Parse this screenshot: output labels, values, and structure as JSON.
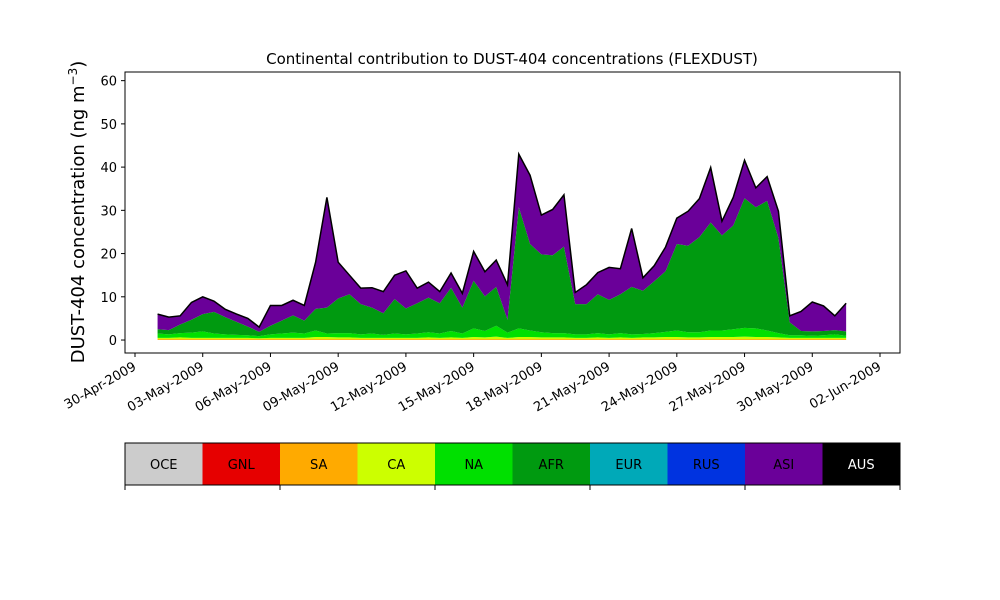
{
  "chart_data": {
    "type": "area",
    "title": "Continental contribution to DUST-404 concentrations (FLEXDUST)",
    "ylabel": "DUST-404 concentration (ng m",
    "ylabel_exp": "−3",
    "ylabel_close": ")",
    "xlabel": "",
    "ylim": [
      -3,
      62
    ],
    "yticks": [
      0,
      10,
      20,
      30,
      40,
      50,
      60
    ],
    "xlim": [
      "2009-04-30T00:00",
      "2009-06-02T00:00"
    ],
    "xticks": [
      "2009-04-30",
      "2009-05-03",
      "2009-05-06",
      "2009-05-09",
      "2009-05-12",
      "2009-05-15",
      "2009-05-18",
      "2009-05-21",
      "2009-05-24",
      "2009-05-27",
      "2009-05-30",
      "2009-06-02"
    ],
    "xtick_labels": [
      "30-Apr-2009",
      "03-May-2009",
      "06-May-2009",
      "09-May-2009",
      "12-May-2009",
      "15-May-2009",
      "18-May-2009",
      "21-May-2009",
      "24-May-2009",
      "27-May-2009",
      "30-May-2009",
      "02-Jun-2009"
    ],
    "grid": false,
    "legend": "colorbar below plot",
    "stacking_order": [
      "OCE",
      "GNL",
      "SA",
      "CA",
      "NA",
      "AFR",
      "EUR",
      "RUS",
      "ASI",
      "AUS"
    ],
    "total_line_color": "#000000",
    "x": [
      "2009-05-01T00:00",
      "2009-05-01T12:00",
      "2009-05-02T00:00",
      "2009-05-02T12:00",
      "2009-05-03T00:00",
      "2009-05-03T12:00",
      "2009-05-04T00:00",
      "2009-05-04T12:00",
      "2009-05-05T00:00",
      "2009-05-05T12:00",
      "2009-05-06T00:00",
      "2009-05-06T12:00",
      "2009-05-07T00:00",
      "2009-05-07T12:00",
      "2009-05-08T00:00",
      "2009-05-08T12:00",
      "2009-05-09T00:00",
      "2009-05-09T12:00",
      "2009-05-10T00:00",
      "2009-05-10T12:00",
      "2009-05-11T00:00",
      "2009-05-11T12:00",
      "2009-05-12T00:00",
      "2009-05-12T12:00",
      "2009-05-13T00:00",
      "2009-05-13T12:00",
      "2009-05-14T00:00",
      "2009-05-14T12:00",
      "2009-05-15T00:00",
      "2009-05-15T12:00",
      "2009-05-16T00:00",
      "2009-05-16T12:00",
      "2009-05-17T00:00",
      "2009-05-17T12:00",
      "2009-05-18T00:00",
      "2009-05-18T12:00",
      "2009-05-19T00:00",
      "2009-05-19T12:00",
      "2009-05-20T00:00",
      "2009-05-20T12:00",
      "2009-05-21T00:00",
      "2009-05-21T12:00",
      "2009-05-22T00:00",
      "2009-05-22T12:00",
      "2009-05-23T00:00",
      "2009-05-23T12:00",
      "2009-05-24T00:00",
      "2009-05-24T12:00",
      "2009-05-25T00:00",
      "2009-05-25T12:00",
      "2009-05-26T00:00",
      "2009-05-26T12:00",
      "2009-05-27T00:00",
      "2009-05-27T12:00",
      "2009-05-28T00:00",
      "2009-05-28T12:00",
      "2009-05-29T00:00",
      "2009-05-29T12:00",
      "2009-05-30T00:00",
      "2009-05-30T12:00",
      "2009-05-31T00:00",
      "2009-05-31T12:00"
    ],
    "series": [
      {
        "name": "OCE",
        "color": "#cccccc",
        "values": [
          0,
          0,
          0,
          0,
          0,
          0,
          0,
          0,
          0,
          0,
          0,
          0,
          0,
          0,
          0,
          0,
          0,
          0,
          0,
          0,
          0,
          0,
          0,
          0,
          0,
          0,
          0,
          0,
          0,
          0,
          0,
          0,
          0,
          0,
          0,
          0,
          0,
          0,
          0,
          0,
          0,
          0,
          0,
          0,
          0,
          0,
          0,
          0,
          0,
          0,
          0,
          0,
          0,
          0,
          0,
          0,
          0,
          0,
          0,
          0,
          0,
          0
        ]
      },
      {
        "name": "GNL",
        "color": "#e60000",
        "values": [
          0,
          0,
          0,
          0,
          0,
          0,
          0,
          0,
          0,
          0,
          0,
          0,
          0,
          0,
          0,
          0,
          0,
          0,
          0,
          0,
          0,
          0,
          0,
          0,
          0,
          0,
          0,
          0,
          0,
          0,
          0,
          0,
          0,
          0,
          0,
          0,
          0,
          0,
          0,
          0,
          0,
          0,
          0,
          0,
          0,
          0,
          0,
          0,
          0,
          0,
          0,
          0,
          0,
          0,
          0,
          0,
          0,
          0,
          0,
          0,
          0,
          0
        ]
      },
      {
        "name": "SA",
        "color": "#ffaa00",
        "values": [
          0.2,
          0.2,
          0.2,
          0.2,
          0.2,
          0.2,
          0.2,
          0.2,
          0.2,
          0.2,
          0.2,
          0.2,
          0.2,
          0.2,
          0.2,
          0.2,
          0.2,
          0.2,
          0.2,
          0.2,
          0.2,
          0.2,
          0.2,
          0.2,
          0.2,
          0.2,
          0.2,
          0.2,
          0.2,
          0.2,
          0.2,
          0.2,
          0.2,
          0.2,
          0.2,
          0.2,
          0.2,
          0.2,
          0.2,
          0.2,
          0.2,
          0.2,
          0.2,
          0.2,
          0.2,
          0.2,
          0.2,
          0.2,
          0.2,
          0.2,
          0.2,
          0.2,
          0.2,
          0.2,
          0.2,
          0.2,
          0.2,
          0.2,
          0.2,
          0.2,
          0.2,
          0.2
        ]
      },
      {
        "name": "CA",
        "color": "#ccff00",
        "values": [
          0.3,
          0.3,
          0.4,
          0.3,
          0.3,
          0.3,
          0.3,
          0.3,
          0.3,
          0.2,
          0.3,
          0.3,
          0.3,
          0.3,
          0.5,
          0.5,
          0.4,
          0.4,
          0.3,
          0.3,
          0.3,
          0.3,
          0.3,
          0.3,
          0.4,
          0.3,
          0.4,
          0.3,
          0.5,
          0.4,
          0.6,
          0.3,
          0.5,
          0.5,
          0.4,
          0.4,
          0.4,
          0.3,
          0.3,
          0.4,
          0.3,
          0.4,
          0.3,
          0.4,
          0.4,
          0.5,
          0.5,
          0.4,
          0.4,
          0.5,
          0.5,
          0.5,
          0.6,
          0.5,
          0.5,
          0.4,
          0.3,
          0.3,
          0.3,
          0.3,
          0.3,
          0.3
        ]
      },
      {
        "name": "NA",
        "color": "#00e000",
        "values": [
          1.0,
          0.8,
          1.0,
          1.2,
          1.5,
          1.0,
          0.8,
          0.7,
          0.6,
          0.5,
          0.8,
          1.0,
          1.2,
          1.0,
          1.5,
          0.8,
          1.0,
          1.0,
          0.8,
          1.0,
          0.7,
          1.0,
          0.8,
          1.0,
          1.2,
          1.0,
          1.5,
          1.0,
          2.0,
          1.5,
          2.5,
          1.2,
          2.0,
          1.5,
          1.2,
          1.0,
          1.0,
          0.8,
          0.8,
          1.0,
          0.8,
          1.0,
          0.8,
          0.8,
          1.0,
          1.2,
          1.5,
          1.2,
          1.2,
          1.5,
          1.5,
          1.8,
          2.0,
          2.0,
          1.5,
          1.0,
          0.6,
          0.6,
          0.5,
          0.6,
          0.8,
          0.5
        ]
      },
      {
        "name": "AFR",
        "color": "#009a10",
        "values": [
          1,
          1,
          2,
          3,
          4,
          5,
          4,
          3,
          2,
          1,
          2,
          3,
          4,
          3,
          5,
          6,
          8,
          9,
          7,
          6,
          5,
          8,
          6,
          7,
          8,
          7,
          10,
          6,
          11,
          8,
          9,
          3,
          28,
          20,
          18,
          18,
          20,
          7,
          7,
          9,
          8,
          9,
          11,
          10,
          12,
          14,
          20,
          20,
          22,
          25,
          22,
          24,
          30,
          28,
          30,
          22,
          3,
          1,
          1,
          1,
          1,
          1
        ]
      },
      {
        "name": "EUR",
        "color": "#00a9b8",
        "values": [
          0,
          0,
          0,
          0,
          0,
          0,
          0,
          0,
          0,
          0,
          0,
          0,
          0,
          0,
          0,
          0,
          0,
          0,
          0,
          0,
          0,
          0,
          0,
          0,
          0,
          0,
          0,
          0,
          0,
          0,
          0,
          0,
          0,
          0,
          0,
          0,
          0,
          0,
          0,
          0,
          0,
          0,
          0,
          0,
          0,
          0,
          0,
          0,
          0,
          0,
          0,
          0,
          0,
          0,
          0,
          0,
          0,
          0,
          0,
          0,
          0,
          0
        ]
      },
      {
        "name": "RUS",
        "color": "#0033e0",
        "values": [
          0,
          0,
          0,
          0,
          0,
          0,
          0,
          0,
          0,
          0,
          0,
          0,
          0,
          0,
          0,
          0,
          0,
          0,
          0,
          0,
          0,
          0,
          0,
          0,
          0,
          0,
          0,
          0,
          0,
          0,
          0,
          0,
          0,
          0,
          0,
          0,
          0,
          0,
          0,
          0,
          0,
          0,
          0,
          0,
          0,
          0,
          0,
          0,
          0,
          0,
          0,
          0,
          0,
          0,
          0,
          0,
          0,
          0,
          0,
          0,
          0,
          0
        ]
      },
      {
        "name": "ASI",
        "color": "#6a0099",
        "values": [
          3.5,
          3.0,
          2.0,
          4.0,
          4.0,
          2.5,
          1.8,
          1.8,
          1.9,
          1.1,
          4.7,
          3.5,
          3.5,
          3.5,
          10.8,
          25.5,
          8.4,
          4.4,
          3.7,
          4.6,
          5.0,
          5.5,
          8.7,
          3.5,
          3.6,
          2.7,
          3.4,
          3.3,
          6.8,
          5.7,
          6.2,
          8.1,
          12.3,
          15.9,
          9.1,
          10.6,
          12.0,
          2.7,
          4.5,
          5.0,
          7.5,
          5.9,
          13.5,
          3.0,
          3.6,
          5.6,
          6.0,
          8.0,
          8.9,
          12.7,
          3.3,
          6.5,
          8.8,
          4.5,
          5.6,
          6.2,
          1.5,
          4.5,
          6.8,
          5.8,
          3.3,
          6.5
        ]
      },
      {
        "name": "AUS",
        "color": "#000000",
        "values": [
          0,
          0,
          0,
          0,
          0,
          0,
          0,
          0,
          0,
          0,
          0,
          0,
          0,
          0,
          0,
          0,
          0,
          0,
          0,
          0,
          0,
          0,
          0,
          0,
          0,
          0,
          0,
          0,
          0,
          0,
          0,
          0,
          0,
          0,
          0,
          0,
          0,
          0,
          0,
          0,
          0,
          0,
          0,
          0,
          0,
          0,
          0,
          0,
          0,
          0,
          0,
          0,
          0,
          0,
          0,
          0,
          0,
          0,
          0,
          0,
          0,
          0
        ]
      }
    ]
  },
  "legend": {
    "items": [
      {
        "label": "OCE",
        "color": "#cccccc"
      },
      {
        "label": "GNL",
        "color": "#e60000"
      },
      {
        "label": "SA",
        "color": "#ffaa00"
      },
      {
        "label": "CA",
        "color": "#ccff00"
      },
      {
        "label": "NA",
        "color": "#00e000"
      },
      {
        "label": "AFR",
        "color": "#009a10"
      },
      {
        "label": "EUR",
        "color": "#00a9b8"
      },
      {
        "label": "RUS",
        "color": "#0033e0"
      },
      {
        "label": "ASI",
        "color": "#6a0099"
      },
      {
        "label": "AUS",
        "color": "#000000"
      }
    ]
  }
}
